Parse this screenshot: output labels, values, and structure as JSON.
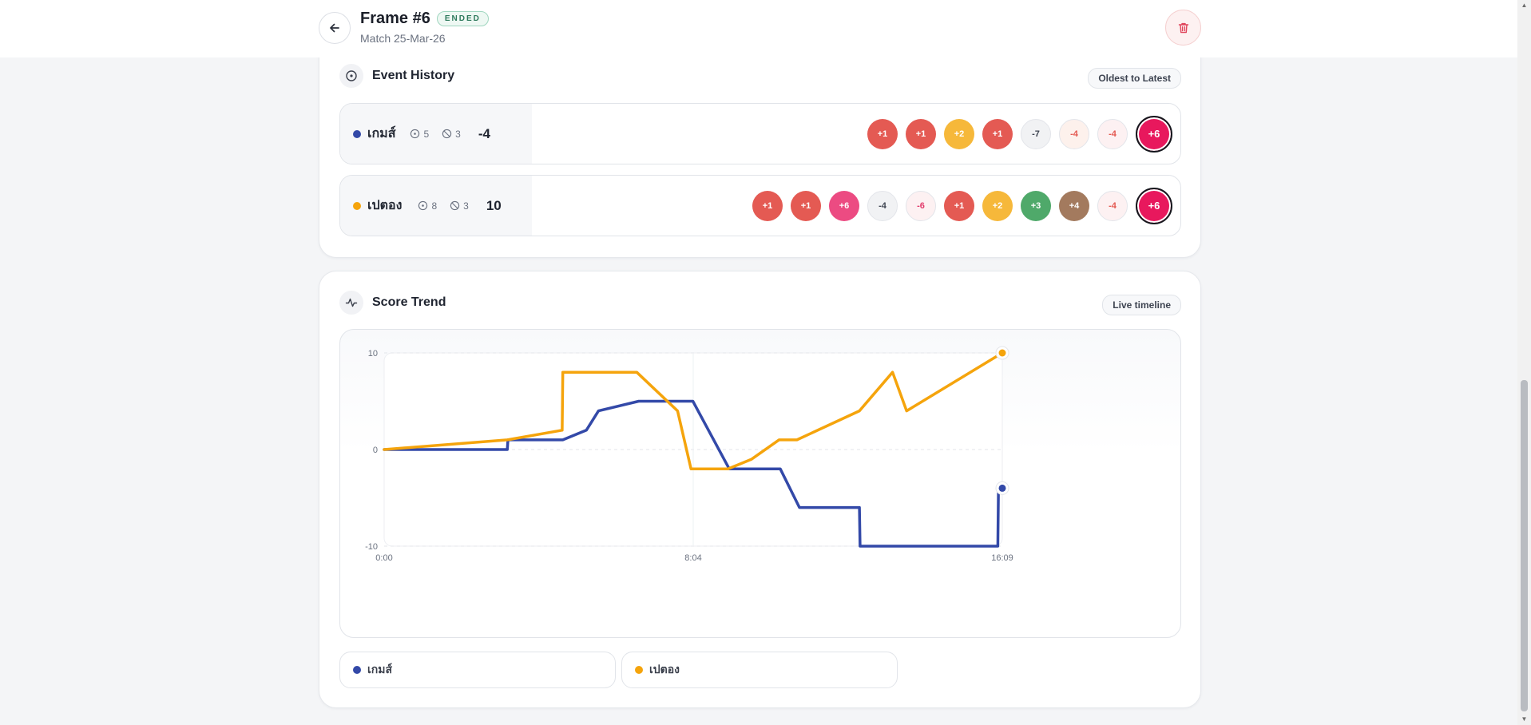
{
  "header": {
    "title": "Frame #6",
    "status": "ENDED",
    "subtitle": "Match 25-Mar-26"
  },
  "event_history": {
    "title": "Event History",
    "sort_label": "Oldest to Latest",
    "players": [
      {
        "name": "เกมส์",
        "color": "#3349a8",
        "pots": "5",
        "fouls": "3",
        "score": "-4",
        "events": [
          {
            "label": "+1",
            "color": "#e45a53",
            "text_color": "#ffffff"
          },
          {
            "label": "+1",
            "color": "#e45a53",
            "text_color": "#ffffff"
          },
          {
            "label": "+2",
            "color": "#f6b83a",
            "text_color": "#ffffff"
          },
          {
            "label": "+1",
            "color": "#e45a53",
            "text_color": "#ffffff"
          },
          {
            "label": "-7",
            "color": "#f1f2f4",
            "text_color": "#3e4451"
          },
          {
            "label": "-4",
            "color": "#fdf1ec",
            "text_color": "#e4574f"
          },
          {
            "label": "-4",
            "color": "#fdf1f2",
            "text_color": "#e4574f"
          },
          {
            "label": "+6",
            "color": "#e8185d",
            "text_color": "#ffffff"
          }
        ]
      },
      {
        "name": "เปตอง",
        "color": "#f5a40c",
        "pots": "8",
        "fouls": "3",
        "score": "10",
        "events": [
          {
            "label": "+1",
            "color": "#e45a53",
            "text_color": "#ffffff"
          },
          {
            "label": "+1",
            "color": "#e45a53",
            "text_color": "#ffffff"
          },
          {
            "label": "+6",
            "color": "#ec4b82",
            "text_color": "#ffffff"
          },
          {
            "label": "-4",
            "color": "#f1f2f4",
            "text_color": "#3e4451"
          },
          {
            "label": "-6",
            "color": "#fdf1f2",
            "text_color": "#e23a6b"
          },
          {
            "label": "+1",
            "color": "#e45a53",
            "text_color": "#ffffff"
          },
          {
            "label": "+2",
            "color": "#f6b83a",
            "text_color": "#ffffff"
          },
          {
            "label": "+3",
            "color": "#4fa96a",
            "text_color": "#ffffff"
          },
          {
            "label": "+4",
            "color": "#a37a5e",
            "text_color": "#ffffff"
          },
          {
            "label": "-4",
            "color": "#fdf1f2",
            "text_color": "#e4574f"
          },
          {
            "label": "+6",
            "color": "#e8185d",
            "text_color": "#ffffff"
          }
        ]
      }
    ]
  },
  "score_trend": {
    "title": "Score Trend",
    "badge": "Live timeline"
  },
  "chart_data": {
    "type": "line",
    "x_unit": "elapsed time (m:ss)",
    "x_tick_labels": [
      "0:00",
      "8:04",
      "16:09"
    ],
    "xlim": [
      0,
      969
    ],
    "y_ticks": [
      10,
      0,
      -10
    ],
    "ylim": [
      -10,
      10
    ],
    "grid": true,
    "legend_position": "bottom",
    "series": [
      {
        "name": "เกมส์",
        "color": "#3349a8",
        "points": [
          [
            0,
            0
          ],
          [
            193,
            0
          ],
          [
            194,
            1
          ],
          [
            280,
            1
          ],
          [
            317,
            2
          ],
          [
            336,
            4
          ],
          [
            399,
            5
          ],
          [
            484,
            5
          ],
          [
            541,
            -2
          ],
          [
            621,
            -2
          ],
          [
            651,
            -6
          ],
          [
            745,
            -6
          ],
          [
            746,
            -10
          ],
          [
            962,
            -10
          ],
          [
            963,
            -4
          ],
          [
            969,
            -4
          ]
        ]
      },
      {
        "name": "เปตอง",
        "color": "#f5a40c",
        "points": [
          [
            0,
            0
          ],
          [
            193,
            1
          ],
          [
            279,
            2
          ],
          [
            280,
            8
          ],
          [
            396,
            8
          ],
          [
            460,
            4
          ],
          [
            481,
            -2
          ],
          [
            539,
            -2
          ],
          [
            576,
            -1
          ],
          [
            619,
            1
          ],
          [
            647,
            1
          ],
          [
            745,
            4
          ],
          [
            797,
            8
          ],
          [
            819,
            4
          ],
          [
            969,
            10
          ]
        ]
      }
    ]
  }
}
